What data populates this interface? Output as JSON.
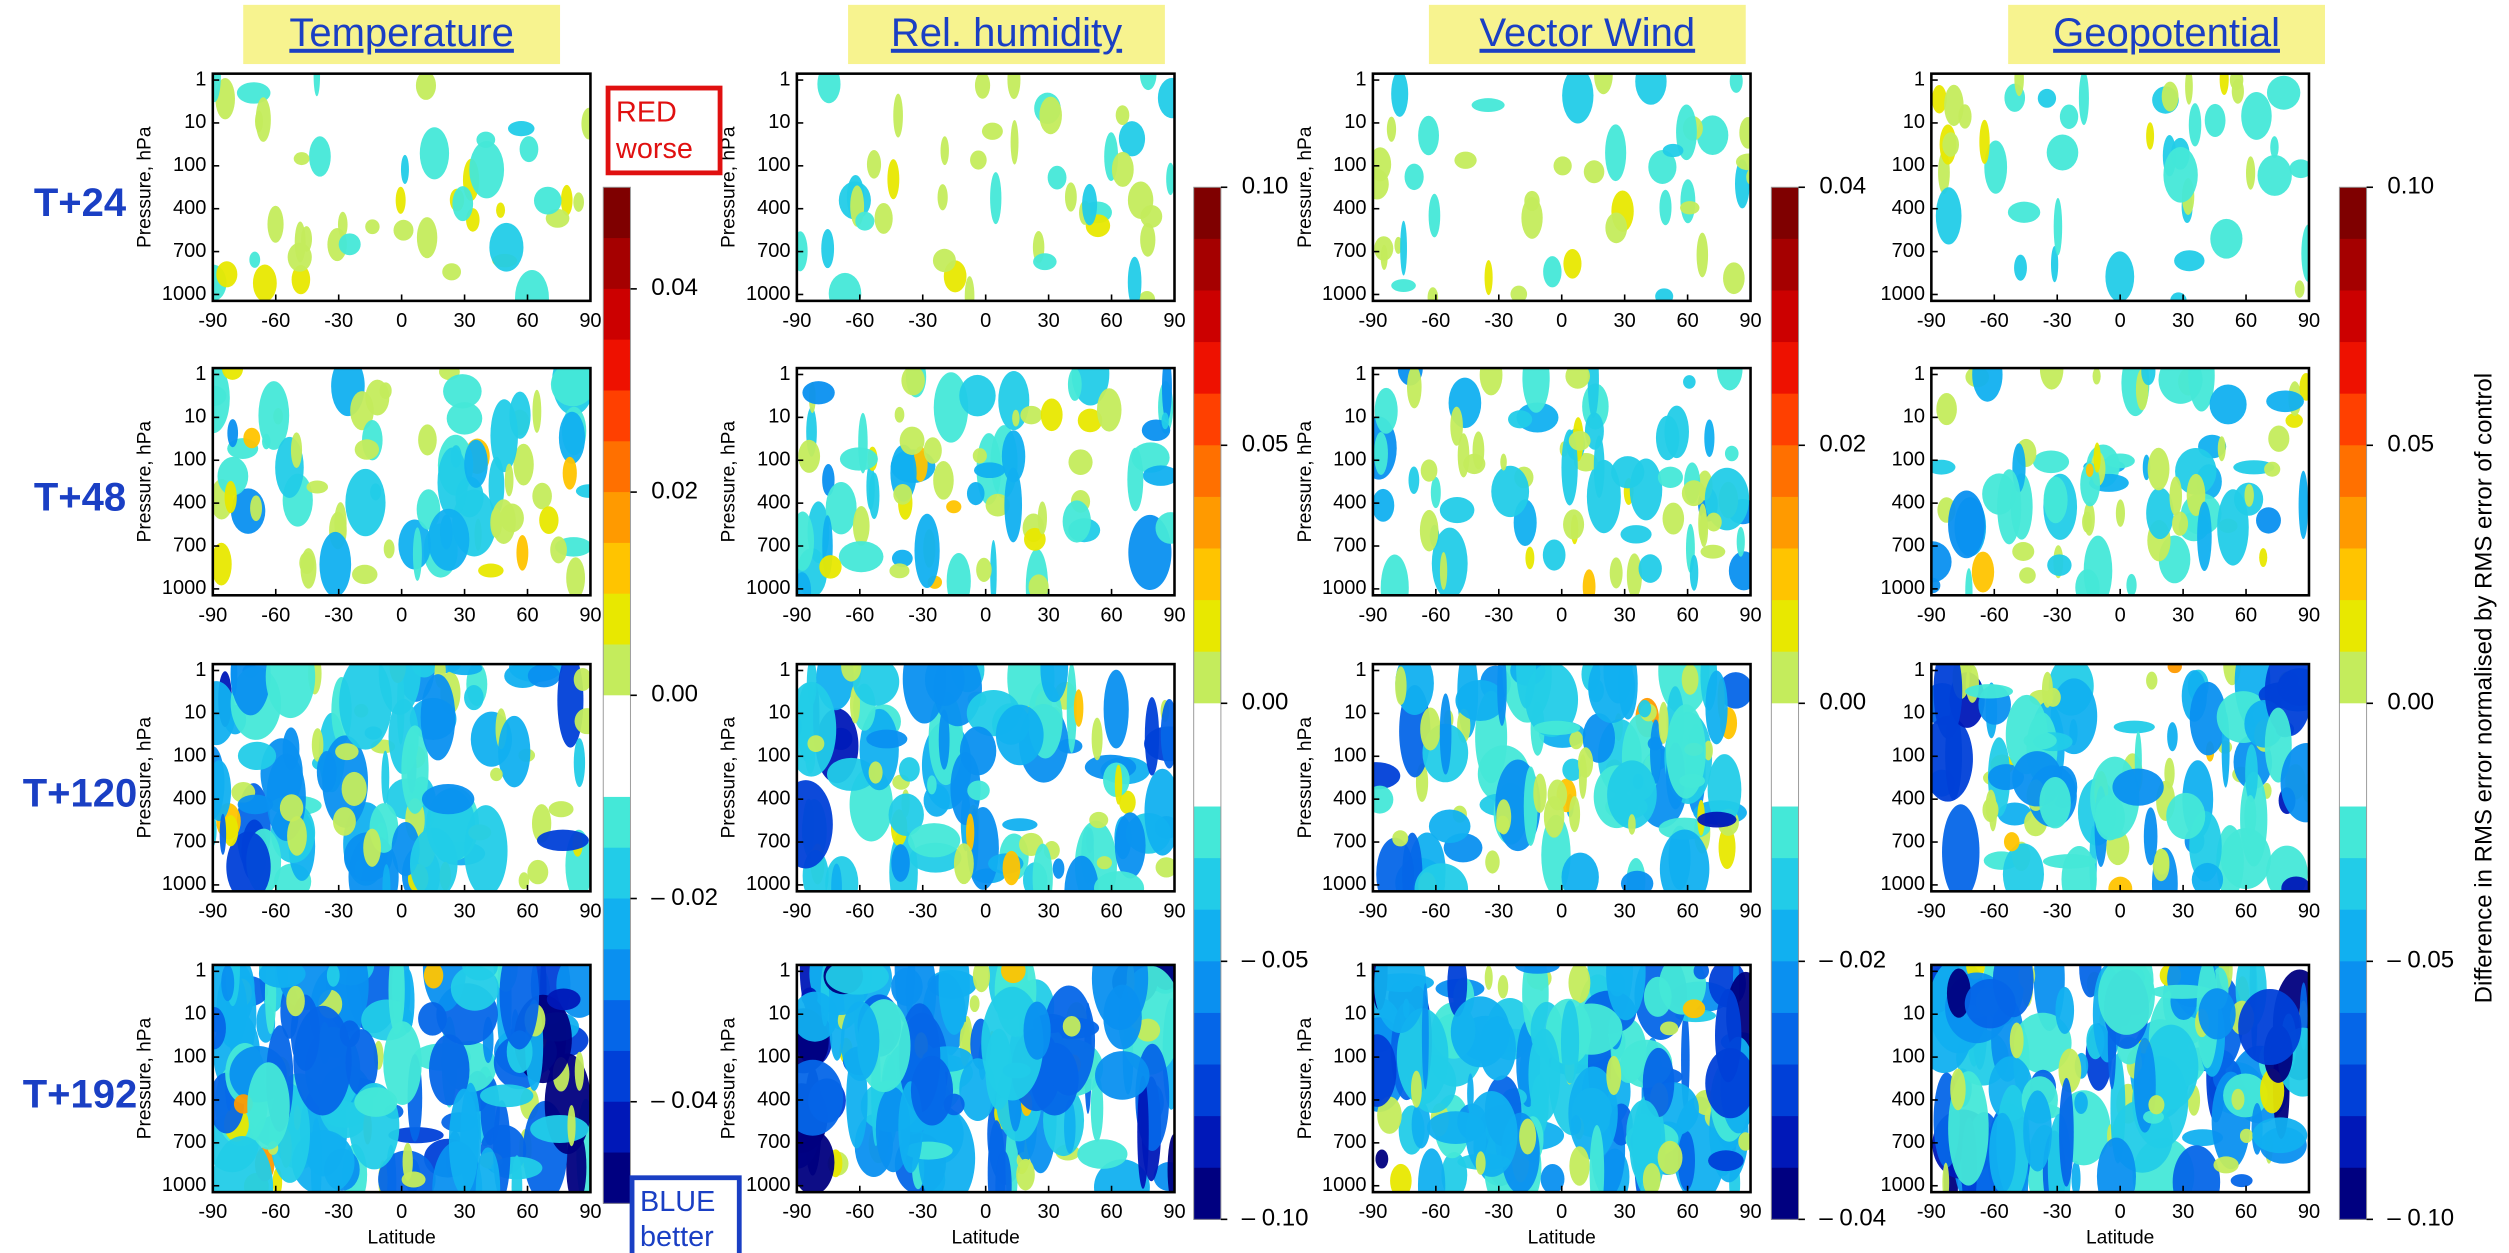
{
  "chart_data": [
    {
      "type": "contour",
      "title": "Temperature",
      "xlabel": "Latitude",
      "ylabel": "Pressure, hPa",
      "xlim": [
        -90,
        90
      ],
      "xticks": [
        -90,
        -60,
        -30,
        0,
        30,
        60,
        90
      ],
      "pressure_levels": [
        1,
        10,
        100,
        400,
        700,
        1000
      ],
      "clim": [
        -0.05,
        0.05
      ],
      "cticks": [
        0.04,
        0.02,
        {
          "value": 0,
          "label": "0.00"
        },
        {
          "value": -0.02,
          "label": "– 0.02"
        },
        {
          "value": -0.04,
          "label": "– 0.04"
        }
      ]
    },
    {
      "type": "contour",
      "title": "Rel. humidity",
      "xlabel": "Latitude",
      "ylabel": "Pressure, hPa",
      "xlim": [
        -90,
        90
      ],
      "xticks": [
        -90,
        -60,
        -30,
        0,
        30,
        60,
        90
      ],
      "pressure_levels": [
        1,
        10,
        100,
        400,
        700,
        1000
      ],
      "clim": [
        -0.1,
        0.1
      ],
      "cticks": [
        {
          "value": 0.1,
          "label": "0.10"
        },
        0.05,
        {
          "value": 0,
          "label": "0.00"
        },
        {
          "value": -0.05,
          "label": "– 0.05"
        },
        {
          "value": -0.1,
          "label": "– 0.10"
        }
      ]
    },
    {
      "type": "contour",
      "title": "Vector Wind",
      "xlabel": "Latitude",
      "ylabel": "Pressure, hPa",
      "xlim": [
        -90,
        90
      ],
      "xticks": [
        -90,
        -60,
        -30,
        0,
        30,
        60,
        90
      ],
      "pressure_levels": [
        1,
        10,
        100,
        400,
        700,
        1000
      ],
      "clim": [
        -0.04,
        0.04
      ],
      "cticks": [
        0.04,
        0.02,
        {
          "value": 0,
          "label": "0.00"
        },
        {
          "value": -0.02,
          "label": "– 0.02"
        },
        {
          "value": -0.04,
          "label": "– 0.04"
        }
      ]
    },
    {
      "type": "contour",
      "title": "Geopotential",
      "xlabel": "Latitude",
      "xlim": [
        -90,
        90
      ],
      "xticks": [
        -90,
        -60,
        -30,
        0,
        30,
        60,
        90
      ],
      "pressure_levels": [
        1,
        10,
        100,
        400,
        700,
        1000
      ],
      "clim": [
        -0.1,
        0.1
      ],
      "cticks": [
        {
          "value": 0.1,
          "label": "0.10"
        },
        0.05,
        {
          "value": 0,
          "label": "0.00"
        },
        {
          "value": -0.05,
          "label": "– 0.05"
        },
        {
          "value": -0.1,
          "label": "– 0.10"
        }
      ]
    }
  ],
  "row_labels": [
    "T+24",
    "T+48",
    "T+120",
    "T+192"
  ],
  "red_note": [
    "RED",
    "worse"
  ],
  "blue_note": [
    "BLUE",
    "better"
  ],
  "colorbar_label": "Difference in RMS error normalised by RMS error of control",
  "colormap": [
    "#7f0000",
    "#a50000",
    "#cc0000",
    "#ee1100",
    "#ff4000",
    "#ff7000",
    "#ff9a00",
    "#ffc400",
    "#e8e800",
    "#c4ec5c",
    "#ffffff",
    "#ffffff",
    "#44e8d8",
    "#22cce8",
    "#11b0f0",
    "#0a90f0",
    "#0566e8",
    "#0040d8",
    "#0018b8",
    "#000080"
  ]
}
